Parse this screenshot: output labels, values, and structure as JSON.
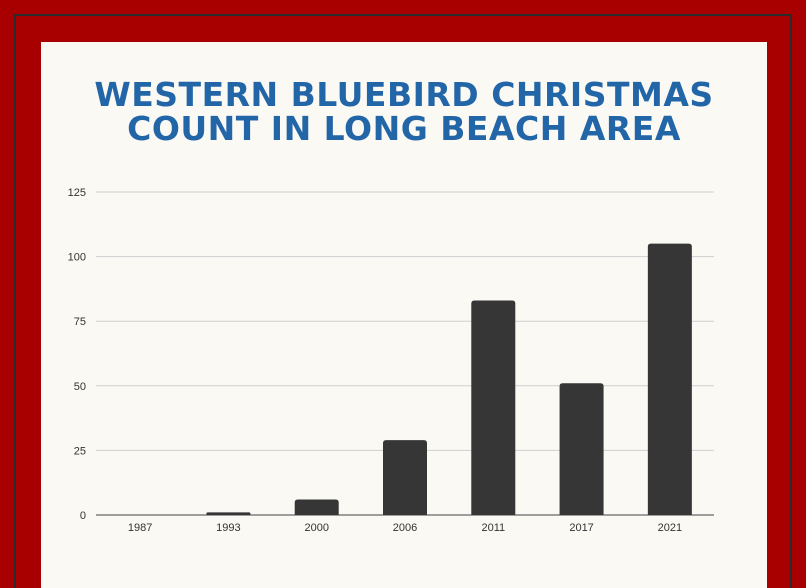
{
  "chart_data": {
    "type": "bar",
    "title": [
      "WESTERN BLUEBIRD CHRISTMAS",
      "COUNT IN LONG BEACH AREA"
    ],
    "categories": [
      "1987",
      "1993",
      "2000",
      "2006",
      "2011",
      "2017",
      "2021"
    ],
    "values": [
      0,
      1,
      6,
      29,
      83,
      51,
      105
    ],
    "ylim": [
      0,
      125
    ],
    "yticks": [
      0,
      25,
      50,
      75,
      100,
      125
    ],
    "grid": true,
    "bar_color": "#363636",
    "grid_color": "#cfcfcf"
  },
  "colors": {
    "frame": "#a80000",
    "panel": "#fbf9f4",
    "title": "#2366a8"
  }
}
